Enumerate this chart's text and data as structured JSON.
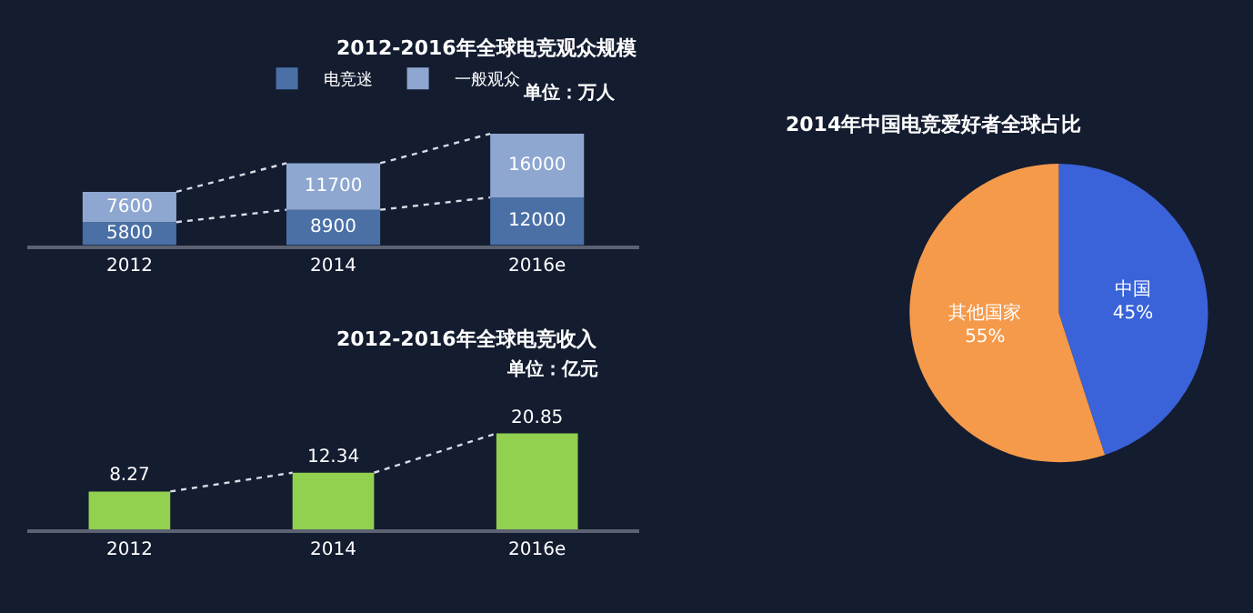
{
  "chart_data": [
    {
      "type": "bar",
      "title": "2012-2016年全球电竞观众规模",
      "categories": [
        "2012",
        "2014",
        "2016e"
      ],
      "stacked": true,
      "data_labels": true,
      "legend": "top",
      "grid": false,
      "series": [
        {
          "name": "电竞迷",
          "color": "#4a70a6",
          "values": [
            5800,
            8900,
            12000
          ]
        },
        {
          "name": "一般观众",
          "color": "#8ea7d1",
          "values": [
            7600,
            11700,
            16000
          ]
        }
      ],
      "annotations": [
        "单位：万人"
      ]
    },
    {
      "type": "bar",
      "title": "2012-2016年全球电竞收入",
      "categories": [
        "2012",
        "2014",
        "2016e"
      ],
      "data_labels": true,
      "grid": false,
      "series": [
        {
          "color": "#92d050",
          "values": [
            8.27,
            12.34,
            20.85
          ]
        }
      ],
      "annotations": [
        "单位：亿元"
      ]
    },
    {
      "type": "pie",
      "title": "2014年中国电竞爱好者全球占比",
      "categories": [
        "中国",
        "其他国家"
      ],
      "values": [
        45,
        55
      ],
      "colors": [
        "#3a63d9",
        "#f5994a"
      ],
      "value_labels": [
        "45%",
        "55%"
      ]
    }
  ]
}
